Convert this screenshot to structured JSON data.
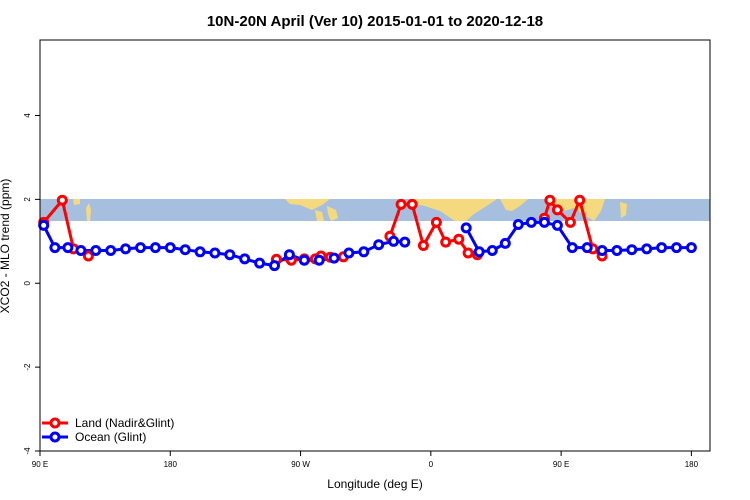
{
  "chart_data": {
    "type": "line",
    "title": "10N-20N April (Ver 10)   2015-01-01 to 2020-12-18",
    "xlabel": "Longitude (deg E)",
    "ylabel": "XCO2 - MLO trend (ppm)",
    "xlim": [
      90,
      450
    ],
    "ylim": [
      -4,
      5.8
    ],
    "x_ticks": [
      {
        "value": 90,
        "label": "90 E"
      },
      {
        "value": 160,
        "label": "180"
      },
      {
        "value": 230,
        "label": "90 W"
      },
      {
        "value": 300,
        "label": "0"
      },
      {
        "value": 370,
        "label": "90 E"
      },
      {
        "value": 440,
        "label": "180"
      }
    ],
    "y_ticks": [
      {
        "value": -4,
        "label": "-4"
      },
      {
        "value": -2,
        "label": "-2"
      },
      {
        "value": 0,
        "label": "0"
      },
      {
        "value": 2,
        "label": "2"
      },
      {
        "value": 4,
        "label": "4"
      }
    ],
    "grid": false,
    "legend_position": "bottom-left",
    "map_strip": {
      "ocean_color": "#a7bfdf",
      "land_color": "#f5d97e"
    },
    "series": [
      {
        "name": "Land (Nadir&Glint)",
        "color": "#ff0000",
        "segments": [
          [
            [
              92,
              1.45
            ],
            [
              102,
              1.98
            ],
            [
              108,
              0.82
            ],
            [
              116,
              0.65
            ]
          ],
          [
            [
              217,
              0.57
            ],
            [
              225,
              0.55
            ],
            [
              232,
              0.58
            ],
            [
              238,
              0.58
            ],
            [
              241,
              0.65
            ],
            [
              246,
              0.62
            ],
            [
              253,
              0.63
            ]
          ],
          [
            [
              278,
              1.12
            ],
            [
              284,
              1.88
            ],
            [
              290,
              1.88
            ],
            [
              296,
              0.9
            ],
            [
              303,
              1.45
            ],
            [
              308,
              0.98
            ],
            [
              315,
              1.05
            ],
            [
              320,
              0.72
            ],
            [
              325,
              0.68
            ]
          ],
          [
            [
              361,
              1.55
            ],
            [
              364,
              1.98
            ],
            [
              368,
              1.75
            ],
            [
              375,
              1.45
            ],
            [
              380,
              1.98
            ],
            [
              387,
              0.82
            ],
            [
              392,
              0.65
            ]
          ]
        ]
      },
      {
        "name": "Ocean (Glint)",
        "color": "#0000ff",
        "segments": [
          [
            [
              92,
              1.38
            ],
            [
              98,
              0.85
            ],
            [
              105,
              0.85
            ],
            [
              112,
              0.78
            ],
            [
              120,
              0.78
            ],
            [
              128,
              0.78
            ],
            [
              136,
              0.82
            ],
            [
              144,
              0.85
            ],
            [
              152,
              0.85
            ],
            [
              160,
              0.85
            ],
            [
              168,
              0.8
            ],
            [
              176,
              0.75
            ],
            [
              184,
              0.72
            ],
            [
              192,
              0.68
            ],
            [
              200,
              0.58
            ],
            [
              208,
              0.48
            ],
            [
              216,
              0.42
            ],
            [
              224,
              0.68
            ],
            [
              232,
              0.55
            ],
            [
              240,
              0.55
            ],
            [
              248,
              0.6
            ],
            [
              256,
              0.72
            ],
            [
              264,
              0.75
            ],
            [
              272,
              0.92
            ],
            [
              280,
              1.0
            ],
            [
              286,
              0.98
            ]
          ],
          [
            [
              319,
              1.32
            ],
            [
              326,
              0.75
            ],
            [
              333,
              0.78
            ],
            [
              340,
              0.95
            ],
            [
              347,
              1.4
            ],
            [
              354,
              1.45
            ],
            [
              361,
              1.45
            ],
            [
              368,
              1.38
            ],
            [
              376,
              0.85
            ],
            [
              384,
              0.85
            ],
            [
              392,
              0.78
            ],
            [
              400,
              0.78
            ],
            [
              408,
              0.8
            ],
            [
              416,
              0.82
            ],
            [
              424,
              0.85
            ],
            [
              432,
              0.85
            ],
            [
              440,
              0.85
            ]
          ]
        ]
      }
    ]
  }
}
